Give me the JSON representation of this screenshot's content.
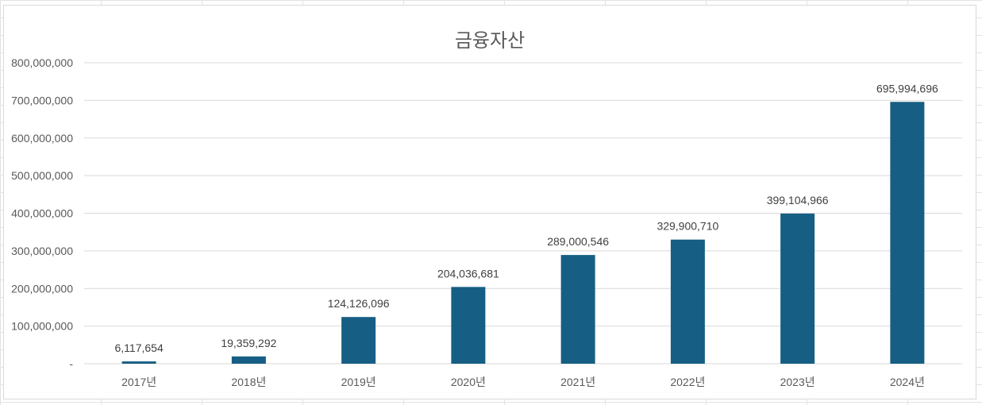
{
  "chart_data": {
    "type": "bar",
    "title": "금융자산",
    "xlabel": "",
    "ylabel": "",
    "categories": [
      "2017년",
      "2018년",
      "2019년",
      "2020년",
      "2021년",
      "2022년",
      "2023년",
      "2024년"
    ],
    "values": [
      6117654,
      19359292,
      124126096,
      204036681,
      289000546,
      329900710,
      399104966,
      695994696
    ],
    "data_labels": [
      "6,117,654",
      "19,359,292",
      "124,126,096",
      "204,036,681",
      "289,000,546",
      "329,900,710",
      "399,104,966",
      "695,994,696"
    ],
    "ylim": [
      0,
      800000000
    ],
    "yticks": [
      0,
      100000000,
      200000000,
      300000000,
      400000000,
      500000000,
      600000000,
      700000000,
      800000000
    ],
    "ytick_labels": [
      "-",
      "100,000,000",
      "200,000,000",
      "300,000,000",
      "400,000,000",
      "500,000,000",
      "600,000,000",
      "700,000,000",
      "800,000,000"
    ],
    "grid": true,
    "legend": "none",
    "bar_color": "#165E83",
    "gridline_color": "#d9d9d9"
  }
}
